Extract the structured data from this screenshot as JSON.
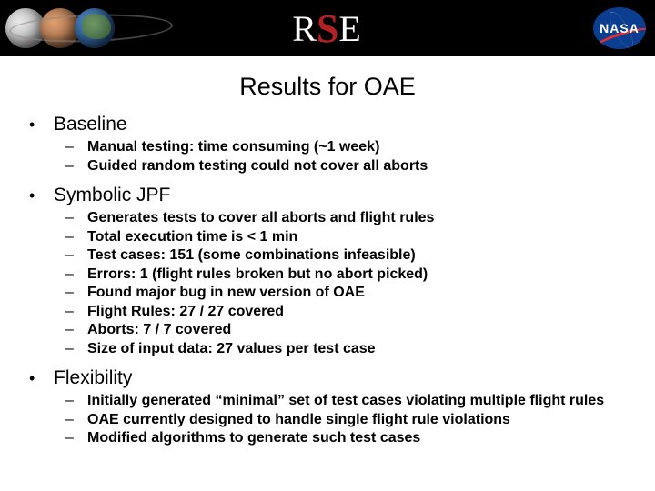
{
  "banner": {
    "logo_left": "R",
    "logo_mid": "S",
    "logo_right": "E",
    "nasa_text": "NASA"
  },
  "title": "Results for OAE",
  "sections": [
    {
      "heading": "Baseline",
      "items": [
        "Manual testing: time consuming (~1 week)",
        "Guided random testing could not cover all aborts"
      ]
    },
    {
      "heading": "Symbolic JPF",
      "items": [
        "Generates tests to cover all aborts and flight rules",
        "Total execution time is < 1 min",
        "Test cases: 151 (some combinations infeasible)",
        "Errors: 1 (flight rules broken but no abort picked)",
        "Found major bug in new version of OAE",
        "Flight Rules: 27 / 27 covered",
        "Aborts: 7 / 7 covered",
        "Size of input data: 27 values per test case"
      ]
    },
    {
      "heading": "Flexibility",
      "items": [
        "Initially generated “minimal” set of test cases violating multiple flight rules",
        "OAE currently designed to handle single flight rule violations",
        "Modified algorithms to generate such test cases"
      ]
    }
  ]
}
